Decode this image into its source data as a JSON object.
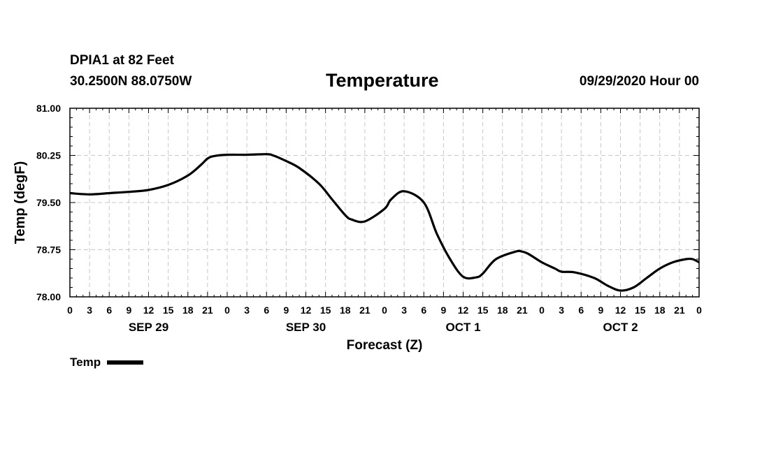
{
  "header": {
    "station": "DPIA1 at 82 Feet",
    "coords": "30.2500N 88.0750W",
    "title": "Temperature",
    "timestamp": "09/29/2020 Hour 00"
  },
  "chart_data": {
    "type": "line",
    "title": "Temperature",
    "xlabel": "Forecast (Z)",
    "ylabel": "Temp (degF)",
    "ylim": [
      78.0,
      81.0
    ],
    "yticks": [
      "78.00",
      "78.75",
      "79.50",
      "80.25",
      "81.00"
    ],
    "xlim": [
      0,
      96
    ],
    "xtick_labels": [
      "0",
      "3",
      "6",
      "9",
      "12",
      "15",
      "18",
      "21",
      "0",
      "3",
      "6",
      "9",
      "12",
      "15",
      "18",
      "21",
      "0",
      "3",
      "6",
      "9",
      "12",
      "15",
      "18",
      "21",
      "0",
      "3",
      "6",
      "9",
      "12",
      "15",
      "18",
      "21",
      "0"
    ],
    "day_labels": [
      {
        "label": "SEP 29",
        "hour": 12
      },
      {
        "label": "SEP 30",
        "hour": 36
      },
      {
        "label": "OCT 1",
        "hour": 60
      },
      {
        "label": "OCT 2",
        "hour": 84
      }
    ],
    "grid": true,
    "legend": "bottom-left",
    "series": [
      {
        "name": "Temp",
        "color": "#000000",
        "x": [
          0,
          3,
          6,
          9,
          12,
          15,
          18,
          20,
          21,
          22,
          24,
          27,
          30,
          31,
          33,
          35,
          38,
          40,
          42,
          43,
          45,
          48,
          49,
          51,
          54,
          56,
          58,
          60,
          62,
          63,
          65,
          68,
          69,
          70,
          72,
          74,
          75,
          77,
          80,
          82,
          84,
          86,
          88,
          90,
          92,
          94,
          95,
          96
        ],
        "values": [
          79.65,
          79.63,
          79.65,
          79.67,
          79.7,
          79.78,
          79.93,
          80.1,
          80.2,
          80.24,
          80.26,
          80.26,
          80.27,
          80.25,
          80.16,
          80.05,
          79.8,
          79.55,
          79.3,
          79.23,
          79.2,
          79.4,
          79.55,
          79.68,
          79.5,
          79.0,
          78.6,
          78.32,
          78.31,
          78.37,
          78.6,
          78.72,
          78.72,
          78.68,
          78.55,
          78.45,
          78.4,
          78.39,
          78.3,
          78.18,
          78.1,
          78.15,
          78.3,
          78.45,
          78.55,
          78.6,
          78.6,
          78.55
        ]
      }
    ]
  }
}
